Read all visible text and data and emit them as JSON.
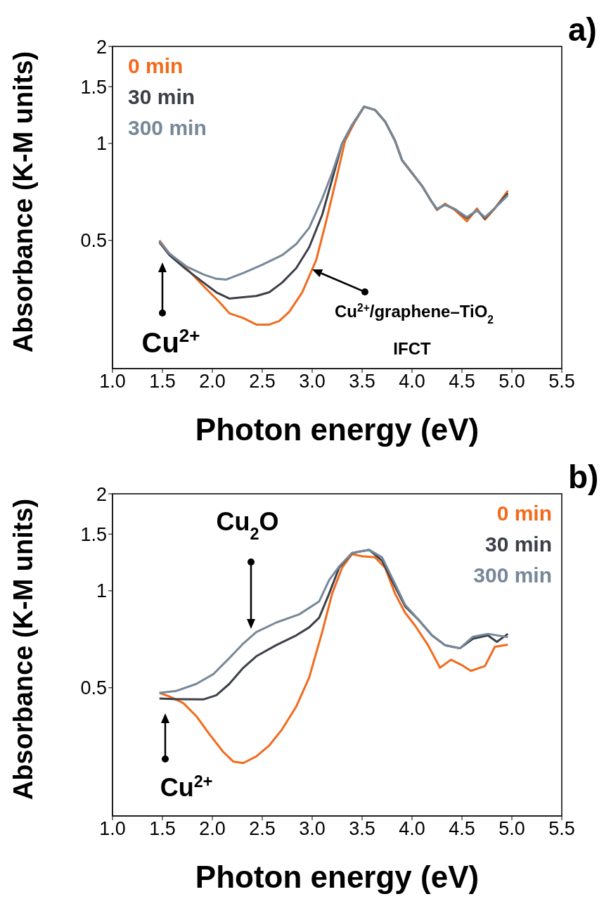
{
  "chart_data": [
    {
      "type": "line",
      "xlabel": "Photon energy (eV)",
      "ylabel": "Absorbance (K-M units)",
      "xlim": [
        1,
        5.5
      ],
      "xticks": [
        {
          "value": 1,
          "label": "1.0"
        },
        {
          "value": 1.5,
          "label": "1.5"
        },
        {
          "value": 2,
          "label": "2.0"
        },
        {
          "value": 2.5,
          "label": "2.5"
        },
        {
          "value": 3,
          "label": "3.0"
        },
        {
          "value": 3.5,
          "label": "3.5"
        },
        {
          "value": 4,
          "label": "4.0"
        },
        {
          "value": 4.5,
          "label": "4.5"
        },
        {
          "value": 5,
          "label": "5.0"
        },
        {
          "value": 5.5,
          "label": "5.5"
        }
      ],
      "ylim": [
        0.2,
        2
      ],
      "yticks": [
        0.5,
        1,
        1.5,
        2
      ],
      "log": "y",
      "legend": "top left",
      "series": [
        {
          "name": "0 min",
          "color": "#f26b1d",
          "x": [
            1.47,
            1.57,
            1.74,
            1.91,
            2.07,
            2.17,
            2.31,
            2.44,
            2.57,
            2.67,
            2.77,
            2.9,
            3.04,
            3.14,
            3.24,
            3.33,
            3.43,
            3.52,
            3.63,
            3.73,
            3.83,
            3.9,
            4.0,
            4.1,
            4.2,
            4.25,
            4.33,
            4.43,
            4.55,
            4.65,
            4.73,
            4.83,
            4.96
          ],
          "values": [
            0.5,
            0.455,
            0.41,
            0.361,
            0.322,
            0.297,
            0.287,
            0.274,
            0.274,
            0.281,
            0.3,
            0.345,
            0.434,
            0.573,
            0.773,
            1.02,
            1.17,
            1.3,
            1.27,
            1.17,
            1.02,
            0.887,
            0.809,
            0.738,
            0.657,
            0.621,
            0.65,
            0.621,
            0.573,
            0.628,
            0.58,
            0.628,
            0.713
          ]
        },
        {
          "name": "30 min",
          "color": "#3d4049",
          "x": [
            1.47,
            1.57,
            1.74,
            1.91,
            2.04,
            2.17,
            2.31,
            2.44,
            2.57,
            2.7,
            2.84,
            2.97,
            3.1,
            3.2,
            3.3,
            3.4,
            3.52,
            3.63,
            3.73,
            3.83,
            3.9,
            4.0,
            4.1,
            4.2,
            4.25,
            4.33,
            4.43,
            4.55,
            4.65,
            4.73,
            4.83,
            4.96
          ],
          "values": [
            0.493,
            0.45,
            0.406,
            0.37,
            0.345,
            0.33,
            0.333,
            0.336,
            0.345,
            0.37,
            0.41,
            0.476,
            0.6,
            0.773,
            1.0,
            1.14,
            1.3,
            1.27,
            1.17,
            1.02,
            0.887,
            0.809,
            0.738,
            0.657,
            0.625,
            0.645,
            0.625,
            0.586,
            0.62,
            0.585,
            0.63,
            0.7
          ]
        },
        {
          "name": "300 min",
          "color": "#778899",
          "x": [
            1.47,
            1.57,
            1.74,
            1.91,
            2.04,
            2.14,
            2.31,
            2.5,
            2.7,
            2.84,
            2.97,
            3.1,
            3.2,
            3.3,
            3.4,
            3.52,
            3.63,
            3.73,
            3.83,
            3.9,
            4.0,
            4.1,
            4.2,
            4.25,
            4.33,
            4.43,
            4.55,
            4.65,
            4.73,
            4.83,
            4.96
          ],
          "values": [
            0.497,
            0.455,
            0.415,
            0.392,
            0.38,
            0.378,
            0.396,
            0.42,
            0.45,
            0.487,
            0.547,
            0.673,
            0.81,
            1.0,
            1.14,
            1.3,
            1.27,
            1.17,
            1.02,
            0.887,
            0.809,
            0.738,
            0.657,
            0.625,
            0.645,
            0.625,
            0.59,
            0.62,
            0.59,
            0.63,
            0.69
          ]
        }
      ],
      "annotations": [
        "a)",
        "Cu$^{2+}$",
        "Cu$^{2+}$/graphene–TiO$_{2}$",
        "IFCT"
      ]
    },
    {
      "type": "line",
      "xlabel": "Photon energy (eV)",
      "ylabel": "Absorbance (K-M units)",
      "xlim": [
        1,
        5.5
      ],
      "xticks": [
        {
          "value": 1,
          "label": "1.0"
        },
        {
          "value": 1.5,
          "label": "1.5"
        },
        {
          "value": 2,
          "label": "2.0"
        },
        {
          "value": 2.5,
          "label": "2.5"
        },
        {
          "value": 3,
          "label": "3.0"
        },
        {
          "value": 3.5,
          "label": "3.5"
        },
        {
          "value": 4,
          "label": "4.0"
        },
        {
          "value": 4.5,
          "label": "4.5"
        },
        {
          "value": 5,
          "label": "5.0"
        },
        {
          "value": 5.5,
          "label": "5.5"
        }
      ],
      "ylim": [
        0.2,
        2
      ],
      "yticks": [
        0.5,
        1,
        1.5,
        2
      ],
      "log": "y",
      "legend": "top right",
      "series": [
        {
          "name": "0 min",
          "color": "#f26b1d",
          "x": [
            1.47,
            1.57,
            1.71,
            1.84,
            1.97,
            2.11,
            2.21,
            2.31,
            2.44,
            2.57,
            2.7,
            2.84,
            2.97,
            3.1,
            3.2,
            3.3,
            3.4,
            3.5,
            3.63,
            3.73,
            3.83,
            3.93,
            4.03,
            4.16,
            4.28,
            4.39,
            4.49,
            4.59,
            4.73,
            4.83,
            4.96
          ],
          "values": [
            0.482,
            0.47,
            0.448,
            0.408,
            0.359,
            0.316,
            0.295,
            0.292,
            0.306,
            0.331,
            0.372,
            0.437,
            0.538,
            0.744,
            0.98,
            1.18,
            1.3,
            1.28,
            1.27,
            1.18,
            0.98,
            0.855,
            0.78,
            0.678,
            0.577,
            0.611,
            0.59,
            0.564,
            0.584,
            0.67,
            0.68
          ]
        },
        {
          "name": "30 min",
          "color": "#3d4049",
          "x": [
            1.47,
            1.64,
            1.91,
            2.04,
            2.17,
            2.31,
            2.44,
            2.64,
            2.84,
            2.97,
            3.07,
            3.17,
            3.27,
            3.4,
            3.57,
            3.7,
            3.83,
            3.93,
            4.06,
            4.2,
            4.33,
            4.48,
            4.61,
            4.76,
            4.85,
            4.96
          ],
          "values": [
            0.463,
            0.461,
            0.46,
            0.474,
            0.514,
            0.577,
            0.626,
            0.678,
            0.727,
            0.77,
            0.825,
            0.98,
            1.18,
            1.31,
            1.34,
            1.24,
            1.03,
            0.895,
            0.816,
            0.727,
            0.678,
            0.663,
            0.71,
            0.727,
            0.694,
            0.735
          ]
        },
        {
          "name": "300 min",
          "color": "#778899",
          "x": [
            1.47,
            1.64,
            1.84,
            2.01,
            2.17,
            2.31,
            2.44,
            2.64,
            2.87,
            3.07,
            3.17,
            3.27,
            3.4,
            3.57,
            3.7,
            3.83,
            3.93,
            4.06,
            4.2,
            4.33,
            4.48,
            4.61,
            4.76,
            4.96
          ],
          "values": [
            0.482,
            0.489,
            0.514,
            0.551,
            0.618,
            0.686,
            0.744,
            0.797,
            0.845,
            0.927,
            1.08,
            1.19,
            1.31,
            1.34,
            1.27,
            1.05,
            0.905,
            0.816,
            0.727,
            0.678,
            0.663,
            0.72,
            0.735,
            0.718
          ]
        }
      ],
      "annotations": [
        "b)",
        "Cu$_{2}$O",
        "Cu$^{2+}$"
      ]
    }
  ]
}
